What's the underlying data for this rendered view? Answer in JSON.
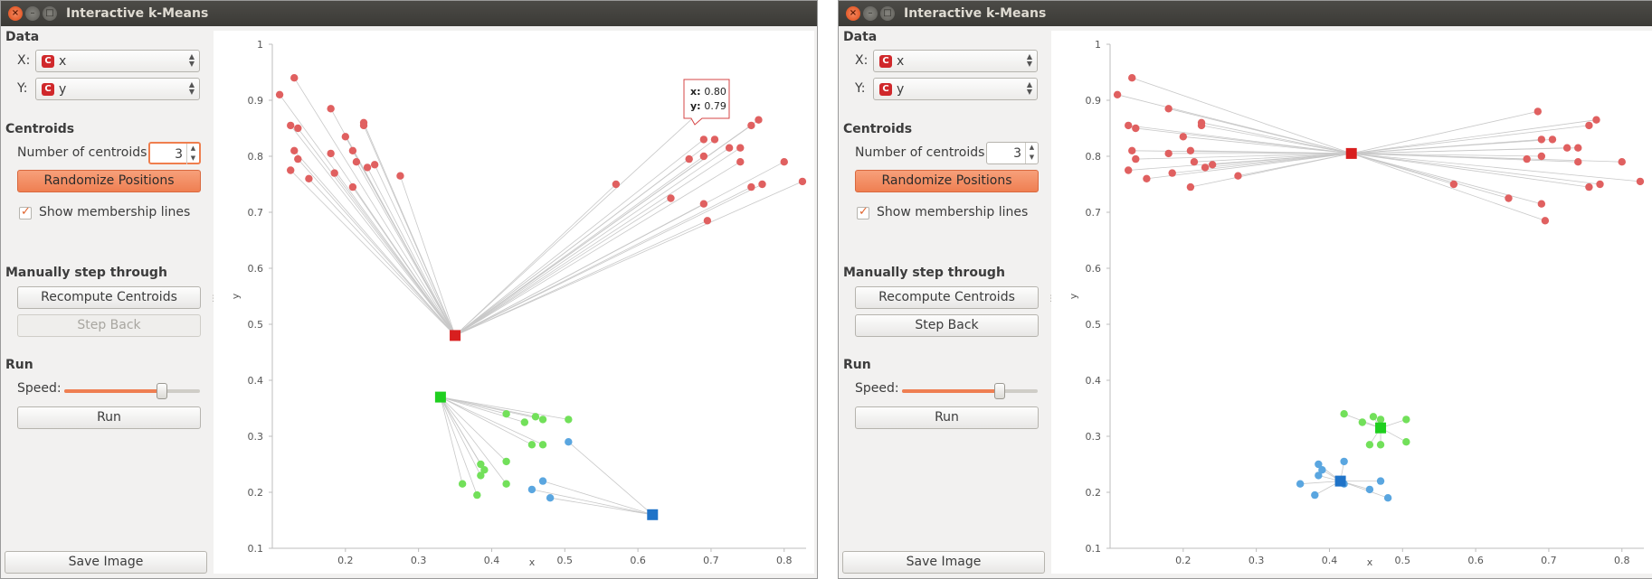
{
  "colors": {
    "red": "#e06060",
    "green": "#72e05a",
    "blue": "#5aa6e0",
    "red_centroid": "#d81f1f",
    "green_centroid": "#1fcf1f",
    "blue_centroid": "#1f73c8",
    "accent": "#ef7f52",
    "line": "#c8c8c8"
  },
  "windows": [
    {
      "title": "Interactive k-Means",
      "panel": {
        "data_label": "Data",
        "x_label": "X:",
        "x_value": "x",
        "y_label": "Y:",
        "y_value": "y",
        "centroids_label": "Centroids",
        "num_centroids_label": "Number of centroids:",
        "num_centroids_value": "3",
        "randomize_label": "Randomize Positions",
        "show_lines_label": "Show membership lines",
        "show_lines_checked": true,
        "manual_label": "Manually step through",
        "recompute_label": "Recompute Centroids",
        "step_back_label": "Step Back",
        "step_back_enabled": false,
        "run_label": "Run",
        "speed_label": "Speed:",
        "speed_value": 0.72,
        "run_button_label": "Run",
        "save_label": "Save Image"
      },
      "tooltip": {
        "x_label": "x:",
        "x_value": "0.80",
        "y_label": "y:",
        "y_value": "0.79"
      }
    },
    {
      "title": "Interactive k-Means",
      "panel": {
        "data_label": "Data",
        "x_label": "X:",
        "x_value": "x",
        "y_label": "Y:",
        "y_value": "y",
        "centroids_label": "Centroids",
        "num_centroids_label": "Number of centroids:",
        "num_centroids_value": "3",
        "randomize_label": "Randomize Positions",
        "show_lines_label": "Show membership lines",
        "show_lines_checked": true,
        "manual_label": "Manually step through",
        "recompute_label": "Recompute Centroids",
        "step_back_label": "Step Back",
        "step_back_enabled": true,
        "run_label": "Run",
        "speed_label": "Speed:",
        "speed_value": 0.72,
        "run_button_label": "Run",
        "save_label": "Save Image"
      }
    }
  ],
  "chart_data": [
    {
      "type": "scatter",
      "xlabel": "x",
      "ylabel": "y",
      "xlim": [
        0.1,
        0.83
      ],
      "ylim": [
        0.1,
        1.0
      ],
      "x_ticks": [
        "0.2",
        "0.3",
        "0.4",
        "0.5",
        "0.6",
        "0.7",
        "0.8"
      ],
      "y_ticks": [
        "0.1",
        "0.2",
        "0.3",
        "0.4",
        "0.5",
        "0.6",
        "0.7",
        "0.8",
        "0.9",
        "1"
      ],
      "membership_lines": true,
      "centroids": [
        {
          "cluster": "red",
          "x": 0.35,
          "y": 0.48
        },
        {
          "cluster": "green",
          "x": 0.33,
          "y": 0.37
        },
        {
          "cluster": "blue",
          "x": 0.62,
          "y": 0.16
        }
      ],
      "points": [
        {
          "x": 0.11,
          "y": 0.91,
          "c": "red"
        },
        {
          "x": 0.13,
          "y": 0.94,
          "c": "red"
        },
        {
          "x": 0.125,
          "y": 0.855,
          "c": "red"
        },
        {
          "x": 0.135,
          "y": 0.85,
          "c": "red"
        },
        {
          "x": 0.13,
          "y": 0.81,
          "c": "red"
        },
        {
          "x": 0.135,
          "y": 0.795,
          "c": "red"
        },
        {
          "x": 0.125,
          "y": 0.775,
          "c": "red"
        },
        {
          "x": 0.15,
          "y": 0.76,
          "c": "red"
        },
        {
          "x": 0.18,
          "y": 0.885,
          "c": "red"
        },
        {
          "x": 0.2,
          "y": 0.835,
          "c": "red"
        },
        {
          "x": 0.18,
          "y": 0.805,
          "c": "red"
        },
        {
          "x": 0.185,
          "y": 0.77,
          "c": "red"
        },
        {
          "x": 0.21,
          "y": 0.81,
          "c": "red"
        },
        {
          "x": 0.225,
          "y": 0.86,
          "c": "red"
        },
        {
          "x": 0.225,
          "y": 0.855,
          "c": "red"
        },
        {
          "x": 0.215,
          "y": 0.79,
          "c": "red"
        },
        {
          "x": 0.23,
          "y": 0.78,
          "c": "red"
        },
        {
          "x": 0.24,
          "y": 0.785,
          "c": "red"
        },
        {
          "x": 0.21,
          "y": 0.745,
          "c": "red"
        },
        {
          "x": 0.275,
          "y": 0.765,
          "c": "red"
        },
        {
          "x": 0.57,
          "y": 0.75,
          "c": "red"
        },
        {
          "x": 0.645,
          "y": 0.725,
          "c": "red"
        },
        {
          "x": 0.67,
          "y": 0.795,
          "c": "red"
        },
        {
          "x": 0.685,
          "y": 0.88,
          "c": "red"
        },
        {
          "x": 0.69,
          "y": 0.83,
          "c": "red"
        },
        {
          "x": 0.705,
          "y": 0.83,
          "c": "red"
        },
        {
          "x": 0.69,
          "y": 0.8,
          "c": "red"
        },
        {
          "x": 0.69,
          "y": 0.715,
          "c": "red"
        },
        {
          "x": 0.695,
          "y": 0.685,
          "c": "red"
        },
        {
          "x": 0.725,
          "y": 0.815,
          "c": "red"
        },
        {
          "x": 0.74,
          "y": 0.815,
          "c": "red"
        },
        {
          "x": 0.74,
          "y": 0.79,
          "c": "red"
        },
        {
          "x": 0.755,
          "y": 0.855,
          "c": "red"
        },
        {
          "x": 0.765,
          "y": 0.865,
          "c": "red"
        },
        {
          "x": 0.755,
          "y": 0.745,
          "c": "red"
        },
        {
          "x": 0.77,
          "y": 0.75,
          "c": "red"
        },
        {
          "x": 0.8,
          "y": 0.79,
          "c": "red"
        },
        {
          "x": 0.825,
          "y": 0.755,
          "c": "red"
        },
        {
          "x": 0.42,
          "y": 0.34,
          "c": "green"
        },
        {
          "x": 0.445,
          "y": 0.325,
          "c": "green"
        },
        {
          "x": 0.46,
          "y": 0.335,
          "c": "green"
        },
        {
          "x": 0.47,
          "y": 0.33,
          "c": "green"
        },
        {
          "x": 0.505,
          "y": 0.33,
          "c": "green"
        },
        {
          "x": 0.455,
          "y": 0.285,
          "c": "green"
        },
        {
          "x": 0.47,
          "y": 0.285,
          "c": "green"
        },
        {
          "x": 0.385,
          "y": 0.25,
          "c": "green"
        },
        {
          "x": 0.39,
          "y": 0.24,
          "c": "green"
        },
        {
          "x": 0.385,
          "y": 0.23,
          "c": "green"
        },
        {
          "x": 0.42,
          "y": 0.255,
          "c": "green"
        },
        {
          "x": 0.36,
          "y": 0.215,
          "c": "green"
        },
        {
          "x": 0.38,
          "y": 0.195,
          "c": "green"
        },
        {
          "x": 0.42,
          "y": 0.215,
          "c": "green"
        },
        {
          "x": 0.505,
          "y": 0.29,
          "c": "blue"
        },
        {
          "x": 0.47,
          "y": 0.22,
          "c": "blue"
        },
        {
          "x": 0.455,
          "y": 0.205,
          "c": "blue"
        },
        {
          "x": 0.48,
          "y": 0.19,
          "c": "blue"
        }
      ]
    },
    {
      "type": "scatter",
      "xlabel": "x",
      "ylabel": "y",
      "xlim": [
        0.1,
        0.83
      ],
      "ylim": [
        0.1,
        1.0
      ],
      "x_ticks": [
        "0.2",
        "0.3",
        "0.4",
        "0.5",
        "0.6",
        "0.7",
        "0.8"
      ],
      "y_ticks": [
        "0.1",
        "0.2",
        "0.3",
        "0.4",
        "0.5",
        "0.6",
        "0.7",
        "0.8",
        "0.9",
        "1"
      ],
      "membership_lines": true,
      "centroids": [
        {
          "cluster": "red",
          "x": 0.43,
          "y": 0.805
        },
        {
          "cluster": "green",
          "x": 0.47,
          "y": 0.315
        },
        {
          "cluster": "blue",
          "x": 0.415,
          "y": 0.22
        }
      ],
      "points": [
        {
          "x": 0.11,
          "y": 0.91,
          "c": "red"
        },
        {
          "x": 0.13,
          "y": 0.94,
          "c": "red"
        },
        {
          "x": 0.125,
          "y": 0.855,
          "c": "red"
        },
        {
          "x": 0.135,
          "y": 0.85,
          "c": "red"
        },
        {
          "x": 0.13,
          "y": 0.81,
          "c": "red"
        },
        {
          "x": 0.135,
          "y": 0.795,
          "c": "red"
        },
        {
          "x": 0.125,
          "y": 0.775,
          "c": "red"
        },
        {
          "x": 0.15,
          "y": 0.76,
          "c": "red"
        },
        {
          "x": 0.18,
          "y": 0.885,
          "c": "red"
        },
        {
          "x": 0.2,
          "y": 0.835,
          "c": "red"
        },
        {
          "x": 0.18,
          "y": 0.805,
          "c": "red"
        },
        {
          "x": 0.185,
          "y": 0.77,
          "c": "red"
        },
        {
          "x": 0.21,
          "y": 0.81,
          "c": "red"
        },
        {
          "x": 0.225,
          "y": 0.86,
          "c": "red"
        },
        {
          "x": 0.225,
          "y": 0.855,
          "c": "red"
        },
        {
          "x": 0.215,
          "y": 0.79,
          "c": "red"
        },
        {
          "x": 0.23,
          "y": 0.78,
          "c": "red"
        },
        {
          "x": 0.24,
          "y": 0.785,
          "c": "red"
        },
        {
          "x": 0.21,
          "y": 0.745,
          "c": "red"
        },
        {
          "x": 0.275,
          "y": 0.765,
          "c": "red"
        },
        {
          "x": 0.57,
          "y": 0.75,
          "c": "red"
        },
        {
          "x": 0.645,
          "y": 0.725,
          "c": "red"
        },
        {
          "x": 0.67,
          "y": 0.795,
          "c": "red"
        },
        {
          "x": 0.685,
          "y": 0.88,
          "c": "red"
        },
        {
          "x": 0.69,
          "y": 0.83,
          "c": "red"
        },
        {
          "x": 0.705,
          "y": 0.83,
          "c": "red"
        },
        {
          "x": 0.69,
          "y": 0.8,
          "c": "red"
        },
        {
          "x": 0.69,
          "y": 0.715,
          "c": "red"
        },
        {
          "x": 0.695,
          "y": 0.685,
          "c": "red"
        },
        {
          "x": 0.725,
          "y": 0.815,
          "c": "red"
        },
        {
          "x": 0.74,
          "y": 0.815,
          "c": "red"
        },
        {
          "x": 0.74,
          "y": 0.79,
          "c": "red"
        },
        {
          "x": 0.755,
          "y": 0.855,
          "c": "red"
        },
        {
          "x": 0.765,
          "y": 0.865,
          "c": "red"
        },
        {
          "x": 0.755,
          "y": 0.745,
          "c": "red"
        },
        {
          "x": 0.77,
          "y": 0.75,
          "c": "red"
        },
        {
          "x": 0.8,
          "y": 0.79,
          "c": "red"
        },
        {
          "x": 0.825,
          "y": 0.755,
          "c": "red"
        },
        {
          "x": 0.42,
          "y": 0.34,
          "c": "green"
        },
        {
          "x": 0.445,
          "y": 0.325,
          "c": "green"
        },
        {
          "x": 0.46,
          "y": 0.335,
          "c": "green"
        },
        {
          "x": 0.47,
          "y": 0.33,
          "c": "green"
        },
        {
          "x": 0.505,
          "y": 0.33,
          "c": "green"
        },
        {
          "x": 0.455,
          "y": 0.285,
          "c": "green"
        },
        {
          "x": 0.47,
          "y": 0.285,
          "c": "green"
        },
        {
          "x": 0.505,
          "y": 0.29,
          "c": "green"
        },
        {
          "x": 0.385,
          "y": 0.25,
          "c": "blue"
        },
        {
          "x": 0.39,
          "y": 0.24,
          "c": "blue"
        },
        {
          "x": 0.385,
          "y": 0.23,
          "c": "blue"
        },
        {
          "x": 0.42,
          "y": 0.255,
          "c": "blue"
        },
        {
          "x": 0.36,
          "y": 0.215,
          "c": "blue"
        },
        {
          "x": 0.38,
          "y": 0.195,
          "c": "blue"
        },
        {
          "x": 0.42,
          "y": 0.215,
          "c": "blue"
        },
        {
          "x": 0.47,
          "y": 0.22,
          "c": "blue"
        },
        {
          "x": 0.455,
          "y": 0.205,
          "c": "blue"
        },
        {
          "x": 0.48,
          "y": 0.19,
          "c": "blue"
        }
      ]
    }
  ]
}
